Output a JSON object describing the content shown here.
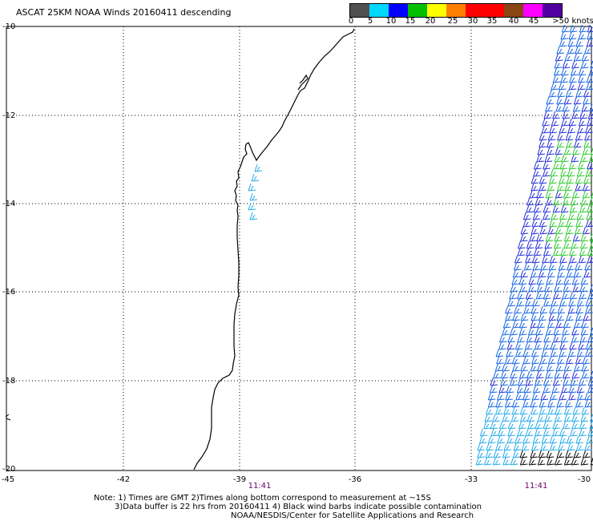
{
  "title": "ASCAT 25KM NOAA Winds 20160411 descending",
  "legend": {
    "labels": [
      "0",
      "5",
      "10",
      "15",
      "20",
      "25",
      "30",
      "35",
      "40",
      "45",
      ">50 knots"
    ],
    "colors": [
      "#505050",
      "#00d8ff",
      "#0000ff",
      "#00c000",
      "#ffff00",
      "#ff8000",
      "#ff0000",
      "#ff0000",
      "#8b4513",
      "#ff00ff",
      "#5000a0"
    ]
  },
  "lat_labels": [
    "-10",
    "-12",
    "-14",
    "-16",
    "-18",
    "-20"
  ],
  "lon_labels": [
    "-45",
    "-42",
    "-39",
    "-36",
    "-33",
    "-30"
  ],
  "time_labels": [
    "11:41",
    "11:41"
  ],
  "notes": [
    "Note: 1) Times are GMT 2)Times along bottom correspond to measurement at ~15S",
    "3)Data buffer is 22 hrs from 20160411 4) Black wind barbs indicate possible contamination",
    "NOAA/NESDIS/Center for Satellite Applications and Research"
  ],
  "colors": {
    "barb_dark_blue": "#1f2ad6",
    "barb_mid_blue": "#1060e0",
    "barb_cyan": "#20a8e8",
    "barb_green": "#28c828",
    "barb_black": "#000000",
    "coast": "#000000",
    "time_label": "#6a006a"
  }
}
